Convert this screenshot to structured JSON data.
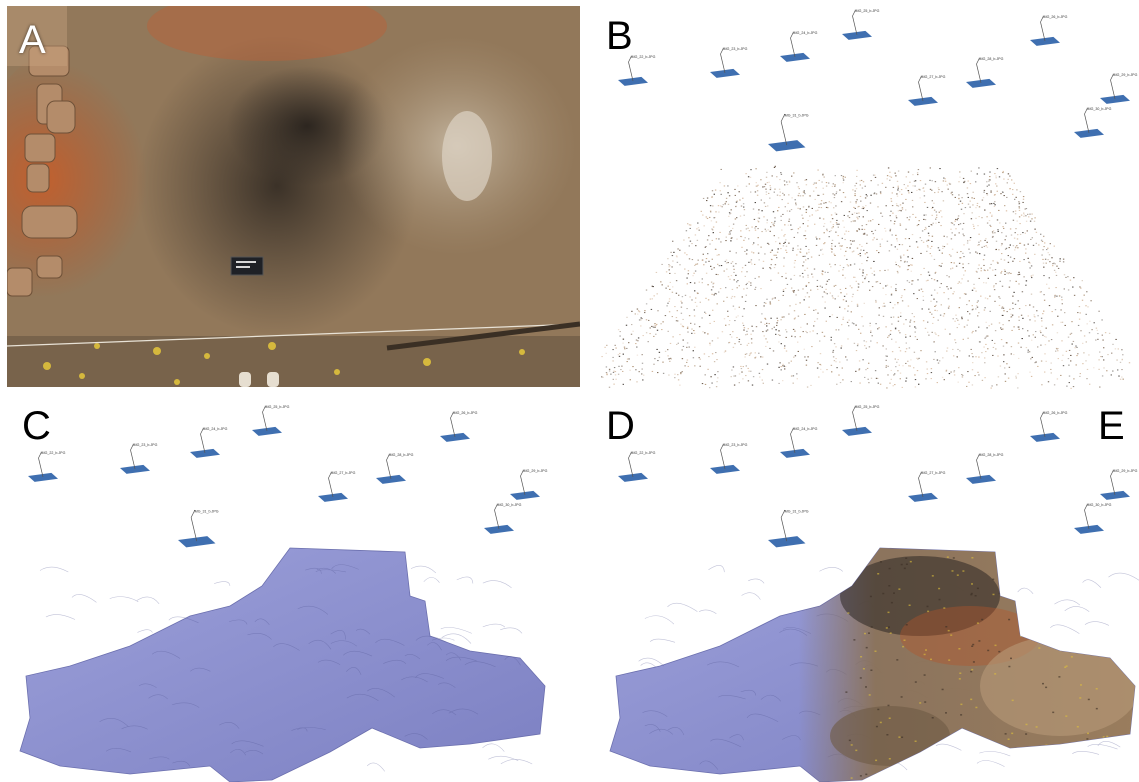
{
  "figure": {
    "panels": [
      {
        "label": "A"
      },
      {
        "label": "B"
      },
      {
        "label": "C"
      },
      {
        "label": "D"
      },
      {
        "label": "E"
      }
    ],
    "camera_labels": [
      "IMG_22_b.JPG",
      "IMG_23_b.JPG",
      "IMG_24_b.JPG",
      "IMG_25_b.JPG",
      "IMG_26_b.JPG",
      "IMG_27_b.JPG",
      "IMG_28_b.JPG",
      "IMG_29_b.JPG",
      "IMG_30_b.JPG",
      "IMG_31_b.JPG",
      "IMG_32_b.JPG"
    ],
    "colors": {
      "camera_blue": "#3f6fb0",
      "mesh_purple": "#8a8fcf",
      "soil_brown": "#7a5a3c",
      "soil_red": "#b5562a",
      "charcoal": "#2b2622"
    }
  }
}
